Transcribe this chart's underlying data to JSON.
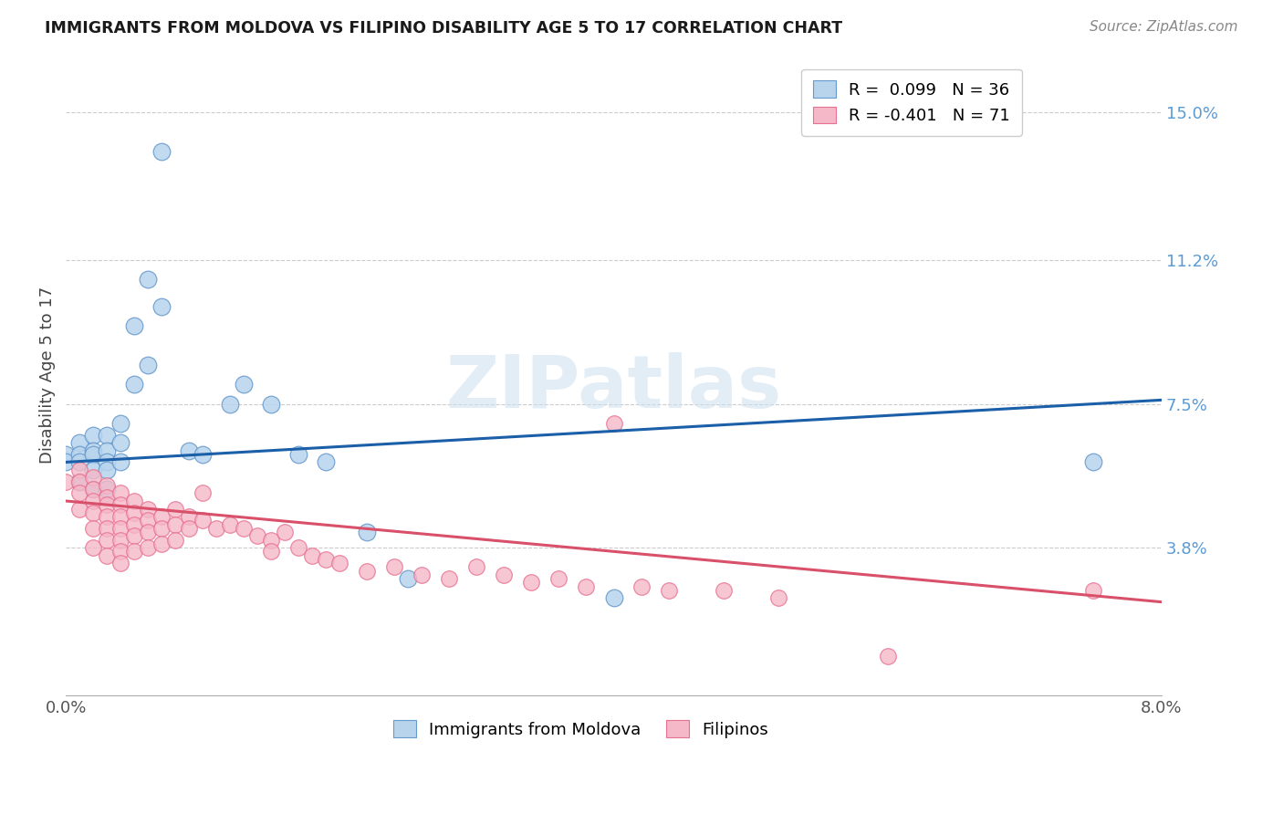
{
  "title": "IMMIGRANTS FROM MOLDOVA VS FILIPINO DISABILITY AGE 5 TO 17 CORRELATION CHART",
  "source": "Source: ZipAtlas.com",
  "ylabel": "Disability Age 5 to 17",
  "xmin": 0.0,
  "xmax": 0.08,
  "ymin": 0.0,
  "ymax": 0.165,
  "ytick_values": [
    0.038,
    0.075,
    0.112,
    0.15
  ],
  "ytick_labels": [
    "3.8%",
    "7.5%",
    "11.2%",
    "15.0%"
  ],
  "xtick_values": [
    0.0,
    0.08
  ],
  "xtick_labels": [
    "0.0%",
    "8.0%"
  ],
  "series1_color": "#b8d4ed",
  "series1_edge": "#6699cc",
  "series2_color": "#f5b8c8",
  "series2_edge": "#e87090",
  "trendline1_color": "#1a5fa8",
  "trendline2_color": "#d9506a",
  "watermark": "ZIPatlas",
  "legend1_label": "R =  0.099   N = 36",
  "legend2_label": "R = -0.401   N = 71",
  "legend_label1": "Immigrants from Moldova",
  "legend_label2": "Filipinos",
  "moldova_trendline_x": [
    0.0,
    0.08
  ],
  "moldova_trendline_y": [
    0.06,
    0.076
  ],
  "filipino_trendline_x": [
    0.0,
    0.08
  ],
  "filipino_trendline_y": [
    0.05,
    0.024
  ],
  "moldova_x": [
    0.0,
    0.0,
    0.001,
    0.001,
    0.001,
    0.001,
    0.002,
    0.002,
    0.002,
    0.002,
    0.002,
    0.003,
    0.003,
    0.003,
    0.003,
    0.003,
    0.004,
    0.004,
    0.004,
    0.005,
    0.005,
    0.006,
    0.006,
    0.007,
    0.007,
    0.009,
    0.01,
    0.012,
    0.013,
    0.015,
    0.017,
    0.019,
    0.022,
    0.025,
    0.04,
    0.075
  ],
  "moldova_y": [
    0.062,
    0.06,
    0.065,
    0.062,
    0.06,
    0.055,
    0.067,
    0.063,
    0.062,
    0.058,
    0.053,
    0.067,
    0.063,
    0.06,
    0.058,
    0.053,
    0.07,
    0.065,
    0.06,
    0.095,
    0.08,
    0.107,
    0.085,
    0.14,
    0.1,
    0.063,
    0.062,
    0.075,
    0.08,
    0.075,
    0.062,
    0.06,
    0.042,
    0.03,
    0.025,
    0.06
  ],
  "filipino_x": [
    0.0,
    0.001,
    0.001,
    0.001,
    0.001,
    0.002,
    0.002,
    0.002,
    0.002,
    0.002,
    0.002,
    0.003,
    0.003,
    0.003,
    0.003,
    0.003,
    0.003,
    0.003,
    0.004,
    0.004,
    0.004,
    0.004,
    0.004,
    0.004,
    0.004,
    0.005,
    0.005,
    0.005,
    0.005,
    0.005,
    0.006,
    0.006,
    0.006,
    0.006,
    0.007,
    0.007,
    0.007,
    0.008,
    0.008,
    0.008,
    0.009,
    0.009,
    0.01,
    0.01,
    0.011,
    0.012,
    0.013,
    0.014,
    0.015,
    0.015,
    0.016,
    0.017,
    0.018,
    0.019,
    0.02,
    0.022,
    0.024,
    0.026,
    0.028,
    0.03,
    0.032,
    0.034,
    0.036,
    0.038,
    0.04,
    0.042,
    0.044,
    0.048,
    0.052,
    0.06,
    0.075
  ],
  "filipino_y": [
    0.055,
    0.058,
    0.055,
    0.052,
    0.048,
    0.056,
    0.053,
    0.05,
    0.047,
    0.043,
    0.038,
    0.054,
    0.051,
    0.049,
    0.046,
    0.043,
    0.04,
    0.036,
    0.052,
    0.049,
    0.046,
    0.043,
    0.04,
    0.037,
    0.034,
    0.05,
    0.047,
    0.044,
    0.041,
    0.037,
    0.048,
    0.045,
    0.042,
    0.038,
    0.046,
    0.043,
    0.039,
    0.048,
    0.044,
    0.04,
    0.046,
    0.043,
    0.052,
    0.045,
    0.043,
    0.044,
    0.043,
    0.041,
    0.04,
    0.037,
    0.042,
    0.038,
    0.036,
    0.035,
    0.034,
    0.032,
    0.033,
    0.031,
    0.03,
    0.033,
    0.031,
    0.029,
    0.03,
    0.028,
    0.07,
    0.028,
    0.027,
    0.027,
    0.025,
    0.01,
    0.027
  ]
}
